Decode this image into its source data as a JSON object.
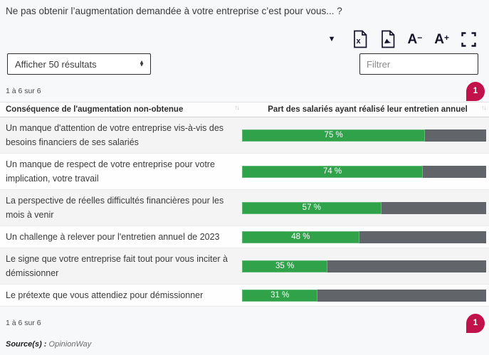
{
  "title": "Ne pas obtenir l’augmentation demandée à votre entreprise c’est pour vous... ?",
  "toolbar": {
    "caret_glyph": "▼",
    "font_smaller": {
      "letter": "A",
      "sign": "−"
    },
    "font_larger": {
      "letter": "A",
      "sign": "+"
    }
  },
  "controls": {
    "results_select": "Afficher 50 résultats",
    "filter_placeholder": "Filtrer"
  },
  "pagination": {
    "info": "1 à 6 sur 6",
    "current_page": "1"
  },
  "table": {
    "col1_header": "Conséquence de l'augmentation non-obtenue",
    "col2_header": "Part des salariés ayant réalisé leur entretien annuel",
    "sort_glyph": "↑↓",
    "rows": [
      {
        "label": "Un manque d'attention de votre entreprise vis-à-vis des besoins financiers de ses salariés",
        "value": 75,
        "value_label": "75 %"
      },
      {
        "label": "Un manque de respect de votre entreprise pour votre implication, votre travail",
        "value": 74,
        "value_label": "74 %"
      },
      {
        "label": "La perspective de réelles difficultés financières pour les mois à venir",
        "value": 57,
        "value_label": "57 %"
      },
      {
        "label": "Un challenge à relever pour l'entretien annuel de 2023",
        "value": 48,
        "value_label": "48 %"
      },
      {
        "label": "Le signe que votre entreprise fait tout pour vous inciter à démissionner",
        "value": 35,
        "value_label": "35 %"
      },
      {
        "label": "Le prétexte que vous attendiez pour démissionner",
        "value": 31,
        "value_label": "31 %"
      }
    ]
  },
  "footer": {
    "source_label": "Source(s) :",
    "source_value": "OpinionWay"
  },
  "colors": {
    "bar_green": "#2fa24a",
    "bar_gray": "#616469",
    "badge": "#c2124b"
  },
  "chart_data": {
    "type": "bar",
    "orientation": "horizontal",
    "title": "Ne pas obtenir l’augmentation demandée à votre entreprise c’est pour vous... ?",
    "categories": [
      "Un manque d'attention de votre entreprise vis-à-vis des besoins financiers de ses salariés",
      "Un manque de respect de votre entreprise pour votre implication, votre travail",
      "La perspective de réelles difficultés financières pour les mois à venir",
      "Un challenge à relever pour l'entretien annuel de 2023",
      "Le signe que votre entreprise fait tout pour vous inciter à démissionner",
      "Le prétexte que vous attendiez pour démissionner"
    ],
    "values": [
      75,
      74,
      57,
      48,
      35,
      31
    ],
    "unit": "%",
    "series_label": "Part des salariés ayant réalisé leur entretien annuel",
    "xlabel": "",
    "ylabel": "Conséquence de l'augmentation non-obtenue",
    "xlim": [
      0,
      100
    ],
    "data_labels": [
      "75 %",
      "74 %",
      "57 %",
      "48 %",
      "35 %",
      "31 %"
    ],
    "source": "OpinionWay"
  }
}
